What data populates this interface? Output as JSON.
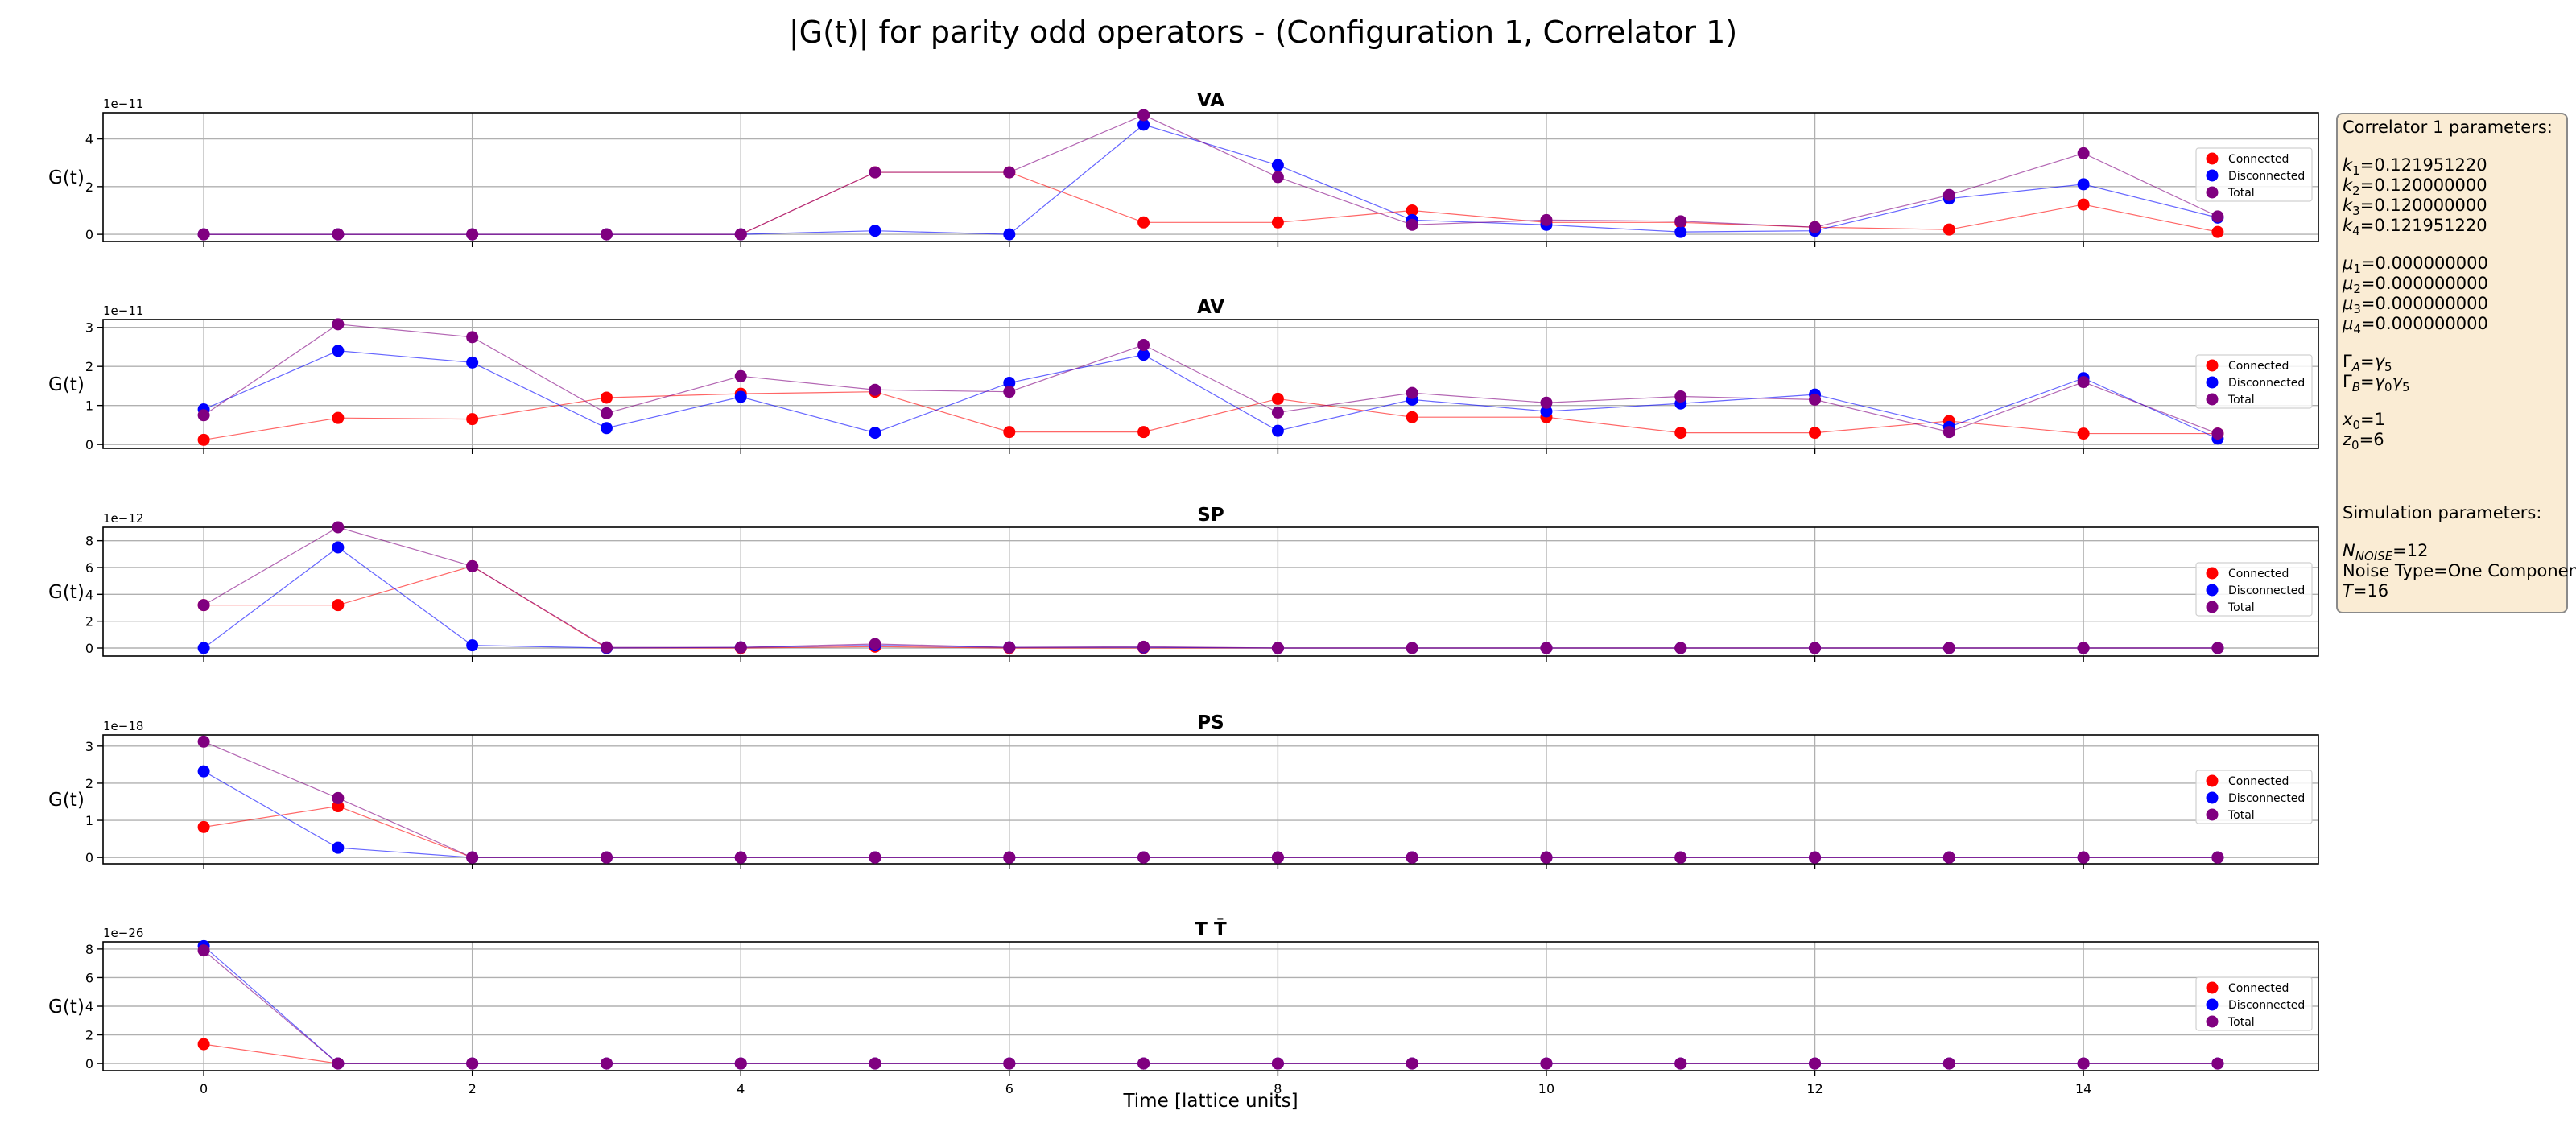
{
  "figure": {
    "title": "|G(t)| for parity odd operators - (Configuration 1, Correlator 1)",
    "xlabel": "Time [lattice units]"
  },
  "colors": {
    "connected": "#ff0000",
    "disconnected": "#0000ff",
    "total": "#800080"
  },
  "chart_data": [
    {
      "type": "line",
      "title": "VA",
      "ylabel": "G(t)",
      "exponent_label": "1e−11",
      "y_ticks": [
        "0",
        "2",
        "4"
      ],
      "ylim": [
        -0.3,
        5.1
      ],
      "xlim": [
        -0.75,
        15.75
      ],
      "x": [
        0,
        1,
        2,
        3,
        4,
        5,
        6,
        7,
        8,
        9,
        10,
        11,
        12,
        13,
        14,
        15
      ],
      "x_ticks": [
        "0",
        "2",
        "4",
        "6",
        "8",
        "10",
        "12",
        "14"
      ],
      "grid": true,
      "legend_position": "center-right",
      "series": [
        {
          "name": "Connected",
          "values": [
            0,
            0,
            0,
            0,
            0,
            2.6,
            2.6,
            0.5,
            0.5,
            1.0,
            0.5,
            0.5,
            0.3,
            0.2,
            1.25,
            0.1
          ]
        },
        {
          "name": "Disconnected",
          "values": [
            0,
            0,
            0,
            0,
            0,
            0.15,
            0,
            4.6,
            2.9,
            0.6,
            0.4,
            0.1,
            0.15,
            1.5,
            2.1,
            0.7
          ]
        },
        {
          "name": "Total",
          "values": [
            0,
            0,
            0,
            0,
            0,
            2.6,
            2.6,
            5.0,
            2.4,
            0.4,
            0.6,
            0.55,
            0.3,
            1.65,
            3.4,
            0.75
          ]
        }
      ]
    },
    {
      "type": "line",
      "title": "AV",
      "ylabel": "G(t)",
      "exponent_label": "1e−11",
      "y_ticks": [
        "0",
        "1",
        "2",
        "3"
      ],
      "ylim": [
        -0.1,
        3.2
      ],
      "xlim": [
        -0.75,
        15.75
      ],
      "x": [
        0,
        1,
        2,
        3,
        4,
        5,
        6,
        7,
        8,
        9,
        10,
        11,
        12,
        13,
        14,
        15
      ],
      "x_ticks": [
        "0",
        "2",
        "4",
        "6",
        "8",
        "10",
        "12",
        "14"
      ],
      "grid": true,
      "legend_position": "center-right",
      "series": [
        {
          "name": "Connected",
          "values": [
            0.12,
            0.68,
            0.65,
            1.2,
            1.3,
            1.35,
            0.32,
            0.32,
            1.17,
            0.7,
            0.7,
            0.3,
            0.3,
            0.6,
            0.28,
            0.28
          ]
        },
        {
          "name": "Disconnected",
          "values": [
            0.9,
            2.4,
            2.1,
            0.42,
            1.22,
            0.3,
            1.58,
            2.3,
            0.35,
            1.15,
            0.85,
            1.05,
            1.28,
            0.45,
            1.7,
            0.15
          ]
        },
        {
          "name": "Total",
          "values": [
            0.75,
            3.08,
            2.75,
            0.8,
            1.75,
            1.4,
            1.35,
            2.55,
            0.82,
            1.32,
            1.07,
            1.23,
            1.15,
            0.32,
            1.6,
            0.28
          ]
        }
      ]
    },
    {
      "type": "line",
      "title": "SP",
      "ylabel": "G(t)",
      "exponent_label": "1e−12",
      "y_ticks": [
        "0",
        "2",
        "4",
        "6",
        "8"
      ],
      "ylim": [
        -0.6,
        9.0
      ],
      "xlim": [
        -0.75,
        15.75
      ],
      "x": [
        0,
        1,
        2,
        3,
        4,
        5,
        6,
        7,
        8,
        9,
        10,
        11,
        12,
        13,
        14,
        15
      ],
      "x_ticks": [
        "0",
        "2",
        "4",
        "6",
        "8",
        "10",
        "12",
        "14"
      ],
      "grid": true,
      "legend_position": "center-right",
      "series": [
        {
          "name": "Connected",
          "values": [
            3.2,
            3.2,
            6.1,
            0,
            0,
            0.1,
            0,
            0,
            0,
            0,
            0,
            0,
            0,
            0,
            0,
            0
          ]
        },
        {
          "name": "Disconnected",
          "values": [
            0,
            7.5,
            0.2,
            0,
            0.05,
            0.2,
            0.05,
            0.05,
            0,
            0,
            0,
            0,
            0,
            0,
            0,
            0
          ]
        },
        {
          "name": "Total",
          "values": [
            3.2,
            9.0,
            6.1,
            0.05,
            0.05,
            0.3,
            0.05,
            0.1,
            0,
            0,
            0,
            0,
            0,
            0,
            0,
            0
          ]
        }
      ]
    },
    {
      "type": "line",
      "title": "PS",
      "ylabel": "G(t)",
      "exponent_label": "1e−18",
      "y_ticks": [
        "0",
        "1",
        "2",
        "3"
      ],
      "ylim": [
        -0.17,
        3.3
      ],
      "xlim": [
        -0.75,
        15.75
      ],
      "x": [
        0,
        1,
        2,
        3,
        4,
        5,
        6,
        7,
        8,
        9,
        10,
        11,
        12,
        13,
        14,
        15
      ],
      "x_ticks": [
        "0",
        "2",
        "4",
        "6",
        "8",
        "10",
        "12",
        "14"
      ],
      "grid": true,
      "legend_position": "center-right",
      "series": [
        {
          "name": "Connected",
          "values": [
            0.82,
            1.38,
            0,
            0,
            0,
            0,
            0,
            0,
            0,
            0,
            0,
            0,
            0,
            0,
            0,
            0
          ]
        },
        {
          "name": "Disconnected",
          "values": [
            2.32,
            0.26,
            0,
            0,
            0,
            0,
            0,
            0,
            0,
            0,
            0,
            0,
            0,
            0,
            0,
            0
          ]
        },
        {
          "name": "Total",
          "values": [
            3.12,
            1.6,
            0,
            0,
            0,
            0,
            0,
            0,
            0,
            0,
            0,
            0,
            0,
            0,
            0,
            0
          ]
        }
      ]
    },
    {
      "type": "line",
      "title": "T T̄",
      "ylabel": "G(t)",
      "exponent_label": "1e−26",
      "y_ticks": [
        "0",
        "2",
        "4",
        "6",
        "8"
      ],
      "ylim": [
        -0.5,
        8.5
      ],
      "xlim": [
        -0.75,
        15.75
      ],
      "x": [
        0,
        1,
        2,
        3,
        4,
        5,
        6,
        7,
        8,
        9,
        10,
        11,
        12,
        13,
        14,
        15
      ],
      "x_ticks": [
        "0",
        "2",
        "4",
        "6",
        "8",
        "10",
        "12",
        "14"
      ],
      "grid": true,
      "legend_position": "center-right",
      "series": [
        {
          "name": "Connected",
          "values": [
            1.35,
            0,
            0,
            0,
            0,
            0,
            0,
            0,
            0,
            0,
            0,
            0,
            0,
            0,
            0,
            0
          ]
        },
        {
          "name": "Disconnected",
          "values": [
            8.2,
            0,
            0,
            0,
            0,
            0,
            0,
            0,
            0,
            0,
            0,
            0,
            0,
            0,
            0,
            0
          ]
        },
        {
          "name": "Total",
          "values": [
            7.9,
            0,
            0,
            0,
            0,
            0,
            0,
            0,
            0,
            0,
            0,
            0,
            0,
            0,
            0,
            0
          ]
        }
      ]
    }
  ],
  "params_box": {
    "correlator_header": "Correlator 1 parameters:",
    "k1": "0.121951220",
    "k2": "0.120000000",
    "k3": "0.120000000",
    "k4": "0.121951220",
    "mu1": "0.000000000",
    "mu2": "0.000000000",
    "mu3": "0.000000000",
    "mu4": "0.000000000",
    "x0": "1",
    "z0": "6",
    "simulation_header": "Simulation parameters:",
    "n_noise": "12",
    "noise_type": "One Component",
    "T": "16"
  }
}
